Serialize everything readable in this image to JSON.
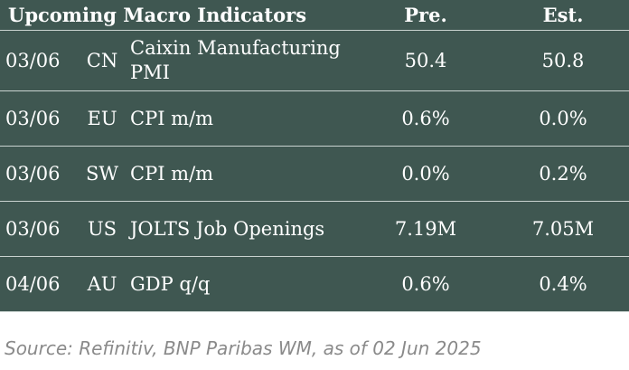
{
  "header": {
    "title": "Upcoming Macro Indicators",
    "col_pre": "Pre.",
    "col_est": "Est."
  },
  "rows": [
    {
      "date": "03/06",
      "region": "CN",
      "name": "Caixin Manufacturing PMI",
      "pre": "50.4",
      "est": "50.8"
    },
    {
      "date": "03/06",
      "region": "EU",
      "name": "CPI m/m",
      "pre": "0.6%",
      "est": "0.0%"
    },
    {
      "date": "03/06",
      "region": "SW",
      "name": "CPI m/m",
      "pre": "0.0%",
      "est": "0.2%"
    },
    {
      "date": "03/06",
      "region": "US",
      "name": "JOLTS Job Openings",
      "pre": "7.19M",
      "est": "7.05M"
    },
    {
      "date": "04/06",
      "region": "AU",
      "name": "GDP q/q",
      "pre": "0.6%",
      "est": "0.4%"
    }
  ],
  "source": "Source: Refinitiv, BNP Paribas WM, as of 02 Jun 2025",
  "colors": {
    "table_background": "#3f5751",
    "text": "#ffffff",
    "divider": "#c9d2cf",
    "source_text": "#8a8a8a"
  }
}
